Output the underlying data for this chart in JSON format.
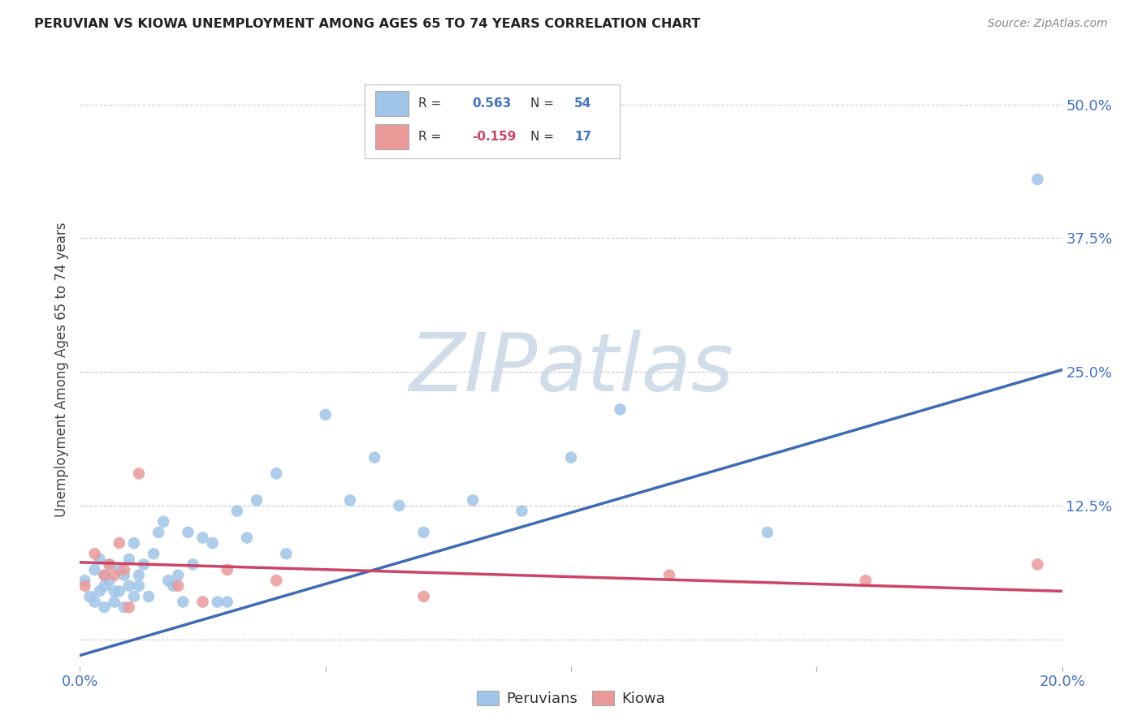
{
  "title": "PERUVIAN VS KIOWA UNEMPLOYMENT AMONG AGES 65 TO 74 YEARS CORRELATION CHART",
  "source": "Source: ZipAtlas.com",
  "ylabel": "Unemployment Among Ages 65 to 74 years",
  "xlim": [
    0.0,
    0.2
  ],
  "ylim": [
    -0.025,
    0.53
  ],
  "yticks": [
    0.0,
    0.125,
    0.25,
    0.375,
    0.5
  ],
  "ytick_labels": [
    "",
    "12.5%",
    "25.0%",
    "37.5%",
    "50.0%"
  ],
  "xticks": [
    0.0,
    0.05,
    0.1,
    0.15,
    0.2
  ],
  "xtick_labels": [
    "0.0%",
    "",
    "",
    "",
    "20.0%"
  ],
  "peruvian_R": "0.563",
  "peruvian_N": "54",
  "kiowa_R": "-0.159",
  "kiowa_N": "17",
  "blue_color": "#9fc5e8",
  "blue_line_color": "#3d6bb5",
  "pink_color": "#ea9999",
  "pink_line_color": "#cc4466",
  "background_color": "#ffffff",
  "grid_color": "#cccccc",
  "tick_color": "#4472c4",
  "watermark_color": "#d0dce8",
  "peru_line_x0": 0.0,
  "peru_line_y0": -0.015,
  "peru_line_x1": 0.2,
  "peru_line_y1": 0.252,
  "kiowa_line_x0": 0.0,
  "kiowa_line_y0": 0.072,
  "kiowa_line_x1": 0.2,
  "kiowa_line_y1": 0.045,
  "peruvian_x": [
    0.001,
    0.002,
    0.003,
    0.003,
    0.004,
    0.004,
    0.005,
    0.005,
    0.005,
    0.006,
    0.006,
    0.007,
    0.007,
    0.008,
    0.008,
    0.009,
    0.009,
    0.01,
    0.01,
    0.011,
    0.011,
    0.012,
    0.012,
    0.013,
    0.014,
    0.015,
    0.016,
    0.017,
    0.018,
    0.019,
    0.02,
    0.021,
    0.022,
    0.023,
    0.025,
    0.027,
    0.028,
    0.03,
    0.032,
    0.034,
    0.036,
    0.04,
    0.042,
    0.05,
    0.055,
    0.06,
    0.065,
    0.07,
    0.08,
    0.09,
    0.1,
    0.11,
    0.14,
    0.195
  ],
  "peruvian_y": [
    0.055,
    0.04,
    0.065,
    0.035,
    0.045,
    0.075,
    0.03,
    0.06,
    0.05,
    0.07,
    0.055,
    0.045,
    0.035,
    0.065,
    0.045,
    0.06,
    0.03,
    0.05,
    0.075,
    0.04,
    0.09,
    0.06,
    0.05,
    0.07,
    0.04,
    0.08,
    0.1,
    0.11,
    0.055,
    0.05,
    0.06,
    0.035,
    0.1,
    0.07,
    0.095,
    0.09,
    0.035,
    0.035,
    0.12,
    0.095,
    0.13,
    0.155,
    0.08,
    0.21,
    0.13,
    0.17,
    0.125,
    0.1,
    0.13,
    0.12,
    0.17,
    0.215,
    0.1,
    0.43
  ],
  "kiowa_x": [
    0.001,
    0.003,
    0.005,
    0.006,
    0.007,
    0.008,
    0.009,
    0.01,
    0.012,
    0.02,
    0.025,
    0.03,
    0.04,
    0.07,
    0.12,
    0.16,
    0.195
  ],
  "kiowa_y": [
    0.05,
    0.08,
    0.06,
    0.07,
    0.06,
    0.09,
    0.065,
    0.03,
    0.155,
    0.05,
    0.035,
    0.065,
    0.055,
    0.04,
    0.06,
    0.055,
    0.07
  ]
}
